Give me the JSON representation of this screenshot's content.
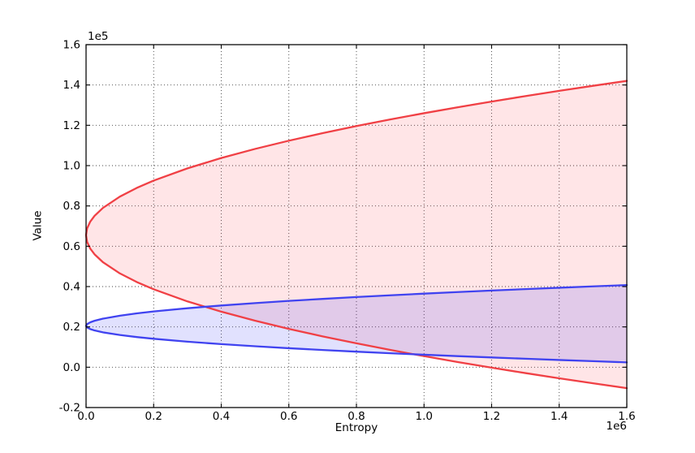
{
  "chart_data": {
    "type": "line",
    "title": "",
    "xlabel": "Entropy",
    "ylabel": "Value",
    "x_offset_text": "1e6",
    "y_offset_text": "1e5",
    "xlim": [
      0,
      1600000
    ],
    "ylim": [
      -20000,
      160000
    ],
    "grid": true,
    "x_ticks": {
      "values": [
        0,
        200000,
        400000,
        600000,
        800000,
        1000000,
        1200000,
        1400000,
        1600000
      ],
      "labels": [
        "0.0",
        "0.2",
        "0.4",
        "0.6",
        "0.8",
        "1.0",
        "1.2",
        "1.4",
        "1.6"
      ]
    },
    "y_ticks": {
      "values": [
        -20000,
        0,
        20000,
        40000,
        60000,
        80000,
        100000,
        120000,
        140000,
        160000
      ],
      "labels": [
        "-0.2",
        "0.0",
        "0.2",
        "0.4",
        "0.6",
        "0.8",
        "1.0",
        "1.2",
        "1.4",
        "1.6"
      ]
    },
    "x": [
      0,
      3000,
      12500,
      25000,
      50000,
      100000,
      150000,
      200000,
      300000,
      400000,
      500000,
      600000,
      700000,
      800000,
      900000,
      1000000,
      1100000,
      1200000,
      1300000,
      1400000,
      1500000,
      1600000
    ],
    "bands": [
      {
        "name": "red-band",
        "line_color": "#f04045",
        "fill_color": "rgba(255,30,40,0.115)",
        "upper": [
          65500,
          68820,
          72260,
          75070,
          79030,
          84630,
          88930,
          92560,
          98640,
          103770,
          108280,
          112360,
          116120,
          119610,
          122900,
          126000,
          128950,
          131770,
          134480,
          137080,
          139590,
          142030
        ],
        "lower": [
          65500,
          62210,
          58790,
          56010,
          52080,
          46530,
          42260,
          38670,
          32640,
          27550,
          23070,
          19020,
          15300,
          11840,
          8580,
          5500,
          2570,
          -220,
          -2910,
          -5490,
          -7980,
          -10390
        ]
      },
      {
        "name": "blue-band",
        "line_color": "#4043f0",
        "fill_color": "rgba(40,40,245,0.14)",
        "upper": [
          20500,
          21380,
          22290,
          23030,
          24080,
          25560,
          26700,
          27660,
          29260,
          30620,
          31810,
          32890,
          33890,
          34810,
          35680,
          36500,
          37280,
          38030,
          38740,
          39430,
          40100,
          40740
        ],
        "lower": [
          20500,
          19720,
          18900,
          18240,
          17300,
          15980,
          14960,
          14110,
          12670,
          11460,
          10390,
          9420,
          8530,
          7710,
          6930,
          6200,
          5500,
          4840,
          4200,
          3580,
          2990,
          2410
        ]
      }
    ]
  }
}
